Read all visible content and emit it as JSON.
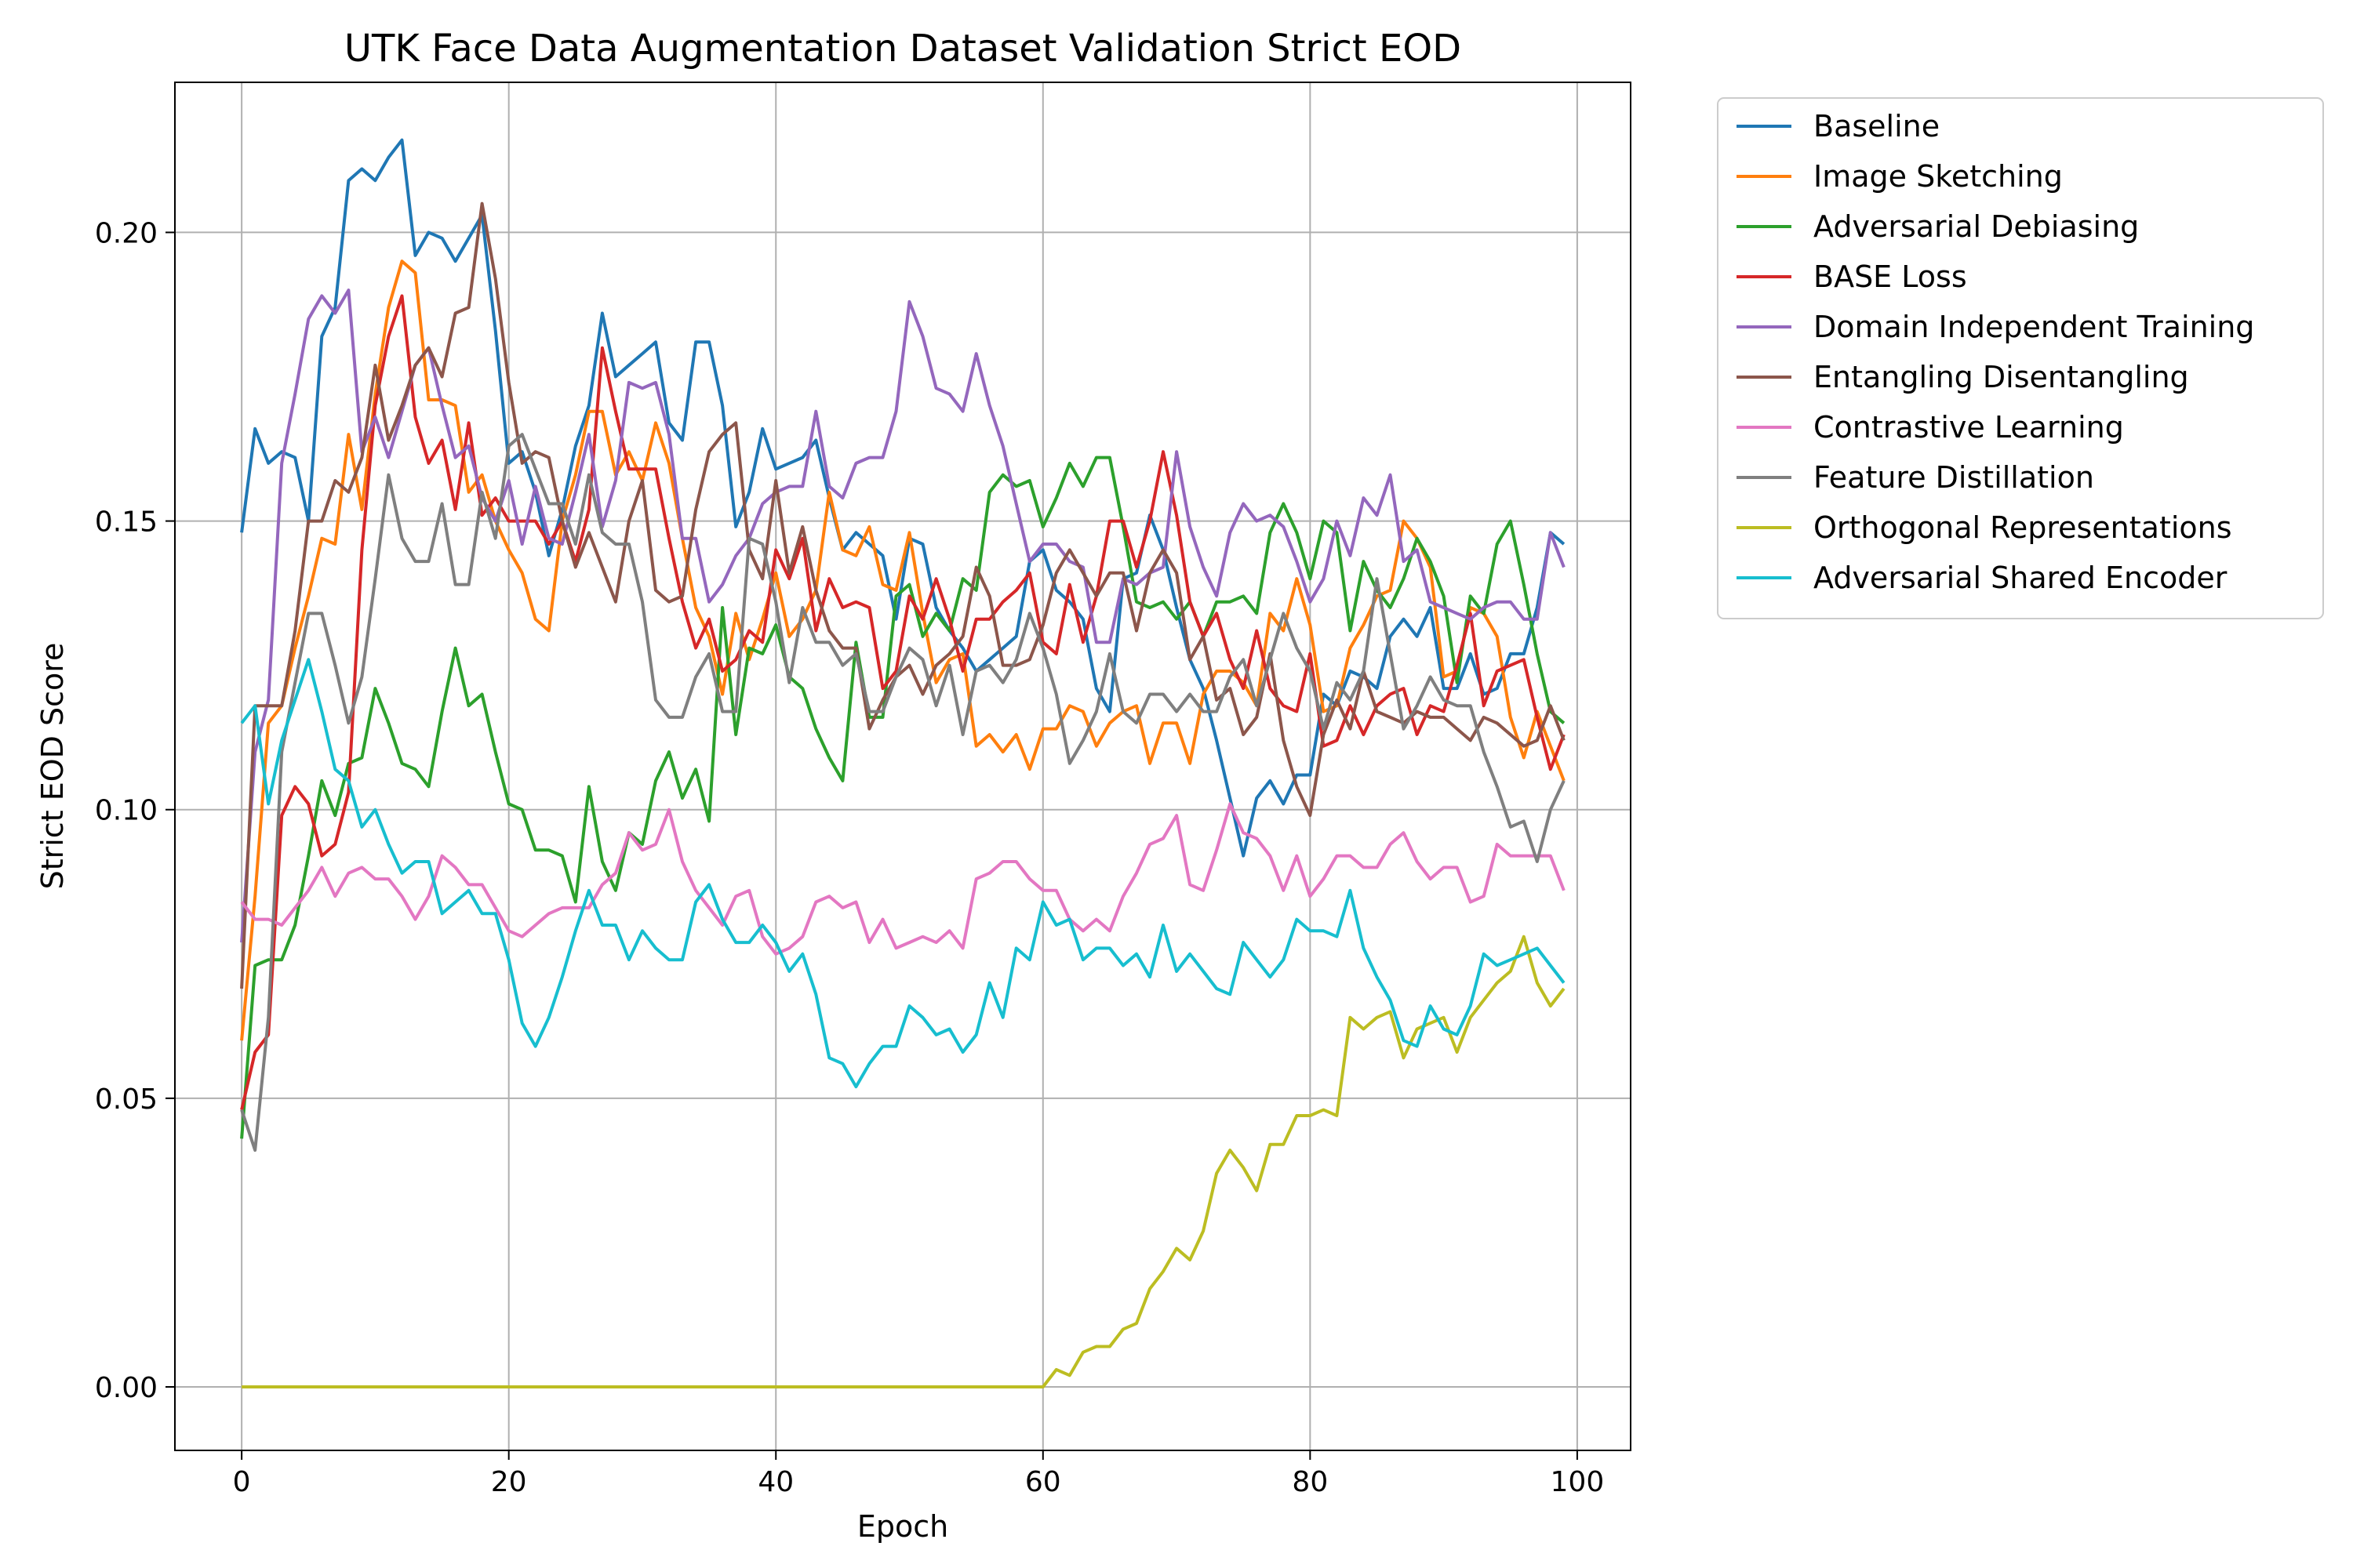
{
  "chart_data": {
    "type": "line",
    "title": "UTK Face Data Augmentation Dataset Validation Strict EOD",
    "xlabel": "Epoch",
    "ylabel": "Strict EOD Score",
    "xlim": [
      -5,
      104
    ],
    "ylim": [
      -0.011,
      0.226
    ],
    "xticks": [
      0,
      20,
      40,
      60,
      80,
      100
    ],
    "yticks": [
      0.0,
      0.05,
      0.1,
      0.15,
      0.2
    ],
    "xtick_labels": [
      "0",
      "20",
      "40",
      "60",
      "80",
      "100"
    ],
    "ytick_labels": [
      "0.00",
      "0.05",
      "0.10",
      "0.15",
      "0.20"
    ],
    "grid": true,
    "legend_position": "outside-top-right",
    "x": [
      0,
      1,
      2,
      3,
      4,
      5,
      6,
      7,
      8,
      9,
      10,
      11,
      12,
      13,
      14,
      15,
      16,
      17,
      18,
      19,
      20,
      21,
      22,
      23,
      24,
      25,
      26,
      27,
      28,
      29,
      30,
      31,
      32,
      33,
      34,
      35,
      36,
      37,
      38,
      39,
      40,
      41,
      42,
      43,
      44,
      45,
      46,
      47,
      48,
      49,
      50,
      51,
      52,
      53,
      54,
      55,
      56,
      57,
      58,
      59,
      60,
      61,
      62,
      63,
      64,
      65,
      66,
      67,
      68,
      69,
      70,
      71,
      72,
      73,
      74,
      75,
      76,
      77,
      78,
      79,
      80,
      81,
      82,
      83,
      84,
      85,
      86,
      87,
      88,
      89,
      90,
      91,
      92,
      93,
      94,
      95,
      96,
      97,
      98,
      99
    ],
    "series": [
      {
        "name": "Baseline",
        "color": "#1f77b4",
        "values": [
          0.148,
          0.166,
          0.16,
          0.162,
          0.161,
          0.15,
          0.182,
          0.187,
          0.209,
          0.211,
          0.209,
          0.213,
          0.216,
          0.196,
          0.2,
          0.199,
          0.195,
          0.199,
          0.203,
          0.183,
          0.16,
          0.162,
          0.155,
          0.144,
          0.152,
          0.163,
          0.17,
          0.186,
          0.175,
          0.177,
          0.179,
          0.181,
          0.167,
          0.164,
          0.181,
          0.181,
          0.17,
          0.149,
          0.155,
          0.166,
          0.159,
          0.16,
          0.161,
          0.164,
          0.154,
          0.145,
          0.148,
          0.146,
          0.144,
          0.133,
          0.147,
          0.146,
          0.135,
          0.131,
          0.128,
          0.124,
          0.126,
          0.128,
          0.13,
          0.143,
          0.145,
          0.138,
          0.136,
          0.133,
          0.121,
          0.117,
          0.14,
          0.141,
          0.151,
          0.145,
          0.135,
          0.126,
          0.121,
          0.112,
          0.102,
          0.092,
          0.102,
          0.105,
          0.101,
          0.106,
          0.106,
          0.12,
          0.118,
          0.124,
          0.123,
          0.121,
          0.13,
          0.133,
          0.13,
          0.135,
          0.121,
          0.121,
          0.127,
          0.12,
          0.121,
          0.127,
          0.127,
          0.135,
          0.148,
          0.146
        ]
      },
      {
        "name": "Image Sketching",
        "color": "#ff7f0e",
        "values": [
          0.06,
          0.085,
          0.115,
          0.118,
          0.128,
          0.137,
          0.147,
          0.146,
          0.165,
          0.152,
          0.172,
          0.187,
          0.195,
          0.193,
          0.171,
          0.171,
          0.17,
          0.155,
          0.158,
          0.15,
          0.145,
          0.141,
          0.133,
          0.131,
          0.15,
          0.158,
          0.169,
          0.169,
          0.158,
          0.162,
          0.157,
          0.167,
          0.16,
          0.147,
          0.135,
          0.13,
          0.12,
          0.134,
          0.126,
          0.133,
          0.141,
          0.13,
          0.133,
          0.138,
          0.155,
          0.145,
          0.144,
          0.149,
          0.139,
          0.138,
          0.148,
          0.134,
          0.122,
          0.126,
          0.127,
          0.111,
          0.113,
          0.11,
          0.113,
          0.107,
          0.114,
          0.114,
          0.118,
          0.117,
          0.111,
          0.115,
          0.117,
          0.118,
          0.108,
          0.115,
          0.115,
          0.108,
          0.12,
          0.124,
          0.124,
          0.122,
          0.118,
          0.134,
          0.131,
          0.14,
          0.132,
          0.117,
          0.118,
          0.128,
          0.132,
          0.137,
          0.138,
          0.15,
          0.147,
          0.142,
          0.123,
          0.124,
          0.135,
          0.134,
          0.13,
          0.116,
          0.109,
          0.117,
          0.111,
          0.105
        ]
      },
      {
        "name": "Adversarial Debiasing",
        "color": "#2ca02c",
        "values": [
          0.043,
          0.073,
          0.074,
          0.074,
          0.08,
          0.092,
          0.105,
          0.099,
          0.108,
          0.109,
          0.121,
          0.115,
          0.108,
          0.107,
          0.104,
          0.117,
          0.128,
          0.118,
          0.12,
          0.11,
          0.101,
          0.1,
          0.093,
          0.093,
          0.092,
          0.084,
          0.104,
          0.091,
          0.086,
          0.096,
          0.094,
          0.105,
          0.11,
          0.102,
          0.107,
          0.098,
          0.135,
          0.113,
          0.128,
          0.127,
          0.132,
          0.123,
          0.121,
          0.114,
          0.109,
          0.105,
          0.129,
          0.116,
          0.116,
          0.137,
          0.139,
          0.13,
          0.134,
          0.131,
          0.14,
          0.138,
          0.155,
          0.158,
          0.156,
          0.157,
          0.149,
          0.154,
          0.16,
          0.156,
          0.161,
          0.161,
          0.149,
          0.136,
          0.135,
          0.136,
          0.133,
          0.136,
          0.13,
          0.136,
          0.136,
          0.137,
          0.134,
          0.148,
          0.153,
          0.148,
          0.14,
          0.15,
          0.148,
          0.131,
          0.143,
          0.138,
          0.135,
          0.14,
          0.147,
          0.143,
          0.137,
          0.122,
          0.137,
          0.134,
          0.146,
          0.15,
          0.139,
          0.127,
          0.117,
          0.115
        ]
      },
      {
        "name": "BASE Loss",
        "color": "#d62728",
        "values": [
          0.048,
          0.058,
          0.061,
          0.099,
          0.104,
          0.101,
          0.092,
          0.094,
          0.103,
          0.145,
          0.17,
          0.182,
          0.189,
          0.168,
          0.16,
          0.164,
          0.152,
          0.167,
          0.151,
          0.154,
          0.15,
          0.15,
          0.15,
          0.146,
          0.15,
          0.143,
          0.152,
          0.18,
          0.169,
          0.159,
          0.159,
          0.159,
          0.147,
          0.136,
          0.128,
          0.133,
          0.124,
          0.126,
          0.131,
          0.129,
          0.145,
          0.14,
          0.147,
          0.131,
          0.14,
          0.135,
          0.136,
          0.135,
          0.121,
          0.124,
          0.137,
          0.133,
          0.14,
          0.133,
          0.124,
          0.133,
          0.133,
          0.136,
          0.138,
          0.141,
          0.129,
          0.127,
          0.139,
          0.129,
          0.137,
          0.15,
          0.15,
          0.142,
          0.15,
          0.162,
          0.151,
          0.136,
          0.13,
          0.134,
          0.126,
          0.121,
          0.131,
          0.121,
          0.118,
          0.117,
          0.127,
          0.111,
          0.112,
          0.118,
          0.113,
          0.118,
          0.12,
          0.121,
          0.113,
          0.118,
          0.117,
          0.125,
          0.134,
          0.118,
          0.124,
          0.125,
          0.126,
          0.116,
          0.107,
          0.113
        ]
      },
      {
        "name": "Domain Independent Training",
        "color": "#9467bd",
        "values": [
          0.077,
          0.11,
          0.119,
          0.16,
          0.172,
          0.185,
          0.189,
          0.186,
          0.19,
          0.162,
          0.168,
          0.161,
          0.169,
          0.177,
          0.18,
          0.17,
          0.161,
          0.163,
          0.154,
          0.15,
          0.157,
          0.146,
          0.156,
          0.147,
          0.146,
          0.155,
          0.165,
          0.149,
          0.157,
          0.174,
          0.173,
          0.174,
          0.165,
          0.147,
          0.147,
          0.136,
          0.139,
          0.144,
          0.147,
          0.153,
          0.155,
          0.156,
          0.156,
          0.169,
          0.156,
          0.154,
          0.16,
          0.161,
          0.161,
          0.169,
          0.188,
          0.182,
          0.173,
          0.172,
          0.169,
          0.179,
          0.17,
          0.163,
          0.153,
          0.143,
          0.146,
          0.146,
          0.143,
          0.142,
          0.129,
          0.129,
          0.14,
          0.139,
          0.141,
          0.142,
          0.162,
          0.149,
          0.142,
          0.137,
          0.148,
          0.153,
          0.15,
          0.151,
          0.149,
          0.143,
          0.136,
          0.14,
          0.15,
          0.144,
          0.154,
          0.151,
          0.158,
          0.143,
          0.145,
          0.136,
          0.135,
          0.134,
          0.133,
          0.135,
          0.136,
          0.136,
          0.133,
          0.133,
          0.148,
          0.142
        ]
      },
      {
        "name": "Entangling Disentangling",
        "color": "#8c564b",
        "values": [
          0.069,
          0.118,
          0.118,
          0.118,
          0.131,
          0.15,
          0.15,
          0.157,
          0.155,
          0.161,
          0.177,
          0.164,
          0.17,
          0.177,
          0.18,
          0.175,
          0.186,
          0.187,
          0.205,
          0.192,
          0.174,
          0.16,
          0.162,
          0.161,
          0.15,
          0.142,
          0.148,
          0.142,
          0.136,
          0.15,
          0.157,
          0.138,
          0.136,
          0.137,
          0.152,
          0.162,
          0.165,
          0.167,
          0.145,
          0.14,
          0.157,
          0.141,
          0.149,
          0.138,
          0.131,
          0.128,
          0.128,
          0.114,
          0.119,
          0.123,
          0.125,
          0.12,
          0.125,
          0.127,
          0.13,
          0.142,
          0.137,
          0.125,
          0.125,
          0.126,
          0.132,
          0.141,
          0.145,
          0.141,
          0.137,
          0.141,
          0.141,
          0.131,
          0.141,
          0.145,
          0.141,
          0.126,
          0.13,
          0.119,
          0.121,
          0.113,
          0.116,
          0.127,
          0.112,
          0.104,
          0.099,
          0.113,
          0.119,
          0.114,
          0.124,
          0.117,
          0.116,
          0.115,
          0.117,
          0.116,
          0.116,
          0.114,
          0.112,
          0.116,
          0.115,
          0.113,
          0.111,
          0.112,
          0.118,
          0.112
        ]
      },
      {
        "name": "Contrastive Learning",
        "color": "#e377c2",
        "values": [
          0.084,
          0.081,
          0.081,
          0.08,
          0.083,
          0.086,
          0.09,
          0.085,
          0.089,
          0.09,
          0.088,
          0.088,
          0.085,
          0.081,
          0.085,
          0.092,
          0.09,
          0.087,
          0.087,
          0.083,
          0.079,
          0.078,
          0.08,
          0.082,
          0.083,
          0.083,
          0.083,
          0.087,
          0.089,
          0.096,
          0.093,
          0.094,
          0.1,
          0.091,
          0.086,
          0.083,
          0.08,
          0.085,
          0.086,
          0.078,
          0.075,
          0.076,
          0.078,
          0.084,
          0.085,
          0.083,
          0.084,
          0.077,
          0.081,
          0.076,
          0.077,
          0.078,
          0.077,
          0.079,
          0.076,
          0.088,
          0.089,
          0.091,
          0.091,
          0.088,
          0.086,
          0.086,
          0.081,
          0.079,
          0.081,
          0.079,
          0.085,
          0.089,
          0.094,
          0.095,
          0.099,
          0.087,
          0.086,
          0.093,
          0.101,
          0.096,
          0.095,
          0.092,
          0.086,
          0.092,
          0.085,
          0.088,
          0.092,
          0.092,
          0.09,
          0.09,
          0.094,
          0.096,
          0.091,
          0.088,
          0.09,
          0.09,
          0.084,
          0.085,
          0.094,
          0.092,
          0.092,
          0.092,
          0.092,
          0.086
        ]
      },
      {
        "name": "Feature Distillation",
        "color": "#7f7f7f",
        "values": [
          0.048,
          0.041,
          0.064,
          0.11,
          0.122,
          0.134,
          0.134,
          0.125,
          0.115,
          0.123,
          0.14,
          0.158,
          0.147,
          0.143,
          0.143,
          0.153,
          0.139,
          0.139,
          0.155,
          0.147,
          0.163,
          0.165,
          0.159,
          0.153,
          0.153,
          0.146,
          0.158,
          0.148,
          0.146,
          0.146,
          0.136,
          0.119,
          0.116,
          0.116,
          0.123,
          0.127,
          0.117,
          0.117,
          0.147,
          0.146,
          0.136,
          0.122,
          0.135,
          0.129,
          0.129,
          0.125,
          0.127,
          0.117,
          0.117,
          0.123,
          0.128,
          0.126,
          0.118,
          0.125,
          0.113,
          0.124,
          0.125,
          0.122,
          0.126,
          0.134,
          0.128,
          0.12,
          0.108,
          0.112,
          0.117,
          0.127,
          0.117,
          0.115,
          0.12,
          0.12,
          0.117,
          0.12,
          0.117,
          0.117,
          0.123,
          0.126,
          0.118,
          0.126,
          0.134,
          0.128,
          0.124,
          0.114,
          0.122,
          0.119,
          0.124,
          0.14,
          0.127,
          0.114,
          0.118,
          0.123,
          0.119,
          0.118,
          0.118,
          0.11,
          0.104,
          0.097,
          0.098,
          0.091,
          0.1,
          0.105
        ]
      },
      {
        "name": "Orthogonal Representations",
        "color": "#bcbd22",
        "values": [
          0,
          0,
          0,
          0,
          0,
          0,
          0,
          0,
          0,
          0,
          0,
          0,
          0,
          0,
          0,
          0,
          0,
          0,
          0,
          0,
          0,
          0,
          0,
          0,
          0,
          0,
          0,
          0,
          0,
          0,
          0,
          0,
          0,
          0,
          0,
          0,
          0,
          0,
          0,
          0,
          0,
          0,
          0,
          0,
          0,
          0,
          0,
          0,
          0,
          0,
          0,
          0,
          0,
          0,
          0,
          0,
          0,
          0,
          0,
          0,
          0,
          0.003,
          0.002,
          0.006,
          0.007,
          0.007,
          0.01,
          0.011,
          0.017,
          0.02,
          0.024,
          0.022,
          0.027,
          0.037,
          0.041,
          0.038,
          0.034,
          0.042,
          0.042,
          0.047,
          0.047,
          0.048,
          0.047,
          0.064,
          0.062,
          0.064,
          0.065,
          0.057,
          0.062,
          0.063,
          0.064,
          0.058,
          0.064,
          0.067,
          0.07,
          0.072,
          0.078,
          0.07,
          0.066,
          0.069
        ]
      },
      {
        "name": "Adversarial Shared Encoder",
        "color": "#17becf",
        "values": [
          0.115,
          0.118,
          0.101,
          0.112,
          0.119,
          0.126,
          0.117,
          0.107,
          0.105,
          0.097,
          0.1,
          0.094,
          0.089,
          0.091,
          0.091,
          0.082,
          0.084,
          0.086,
          0.082,
          0.082,
          0.074,
          0.063,
          0.059,
          0.064,
          0.071,
          0.079,
          0.086,
          0.08,
          0.08,
          0.074,
          0.079,
          0.076,
          0.074,
          0.074,
          0.084,
          0.087,
          0.081,
          0.077,
          0.077,
          0.08,
          0.077,
          0.072,
          0.075,
          0.068,
          0.057,
          0.056,
          0.052,
          0.056,
          0.059,
          0.059,
          0.066,
          0.064,
          0.061,
          0.062,
          0.058,
          0.061,
          0.07,
          0.064,
          0.076,
          0.074,
          0.084,
          0.08,
          0.081,
          0.074,
          0.076,
          0.076,
          0.073,
          0.075,
          0.071,
          0.08,
          0.072,
          0.075,
          0.072,
          0.069,
          0.068,
          0.077,
          0.074,
          0.071,
          0.074,
          0.081,
          0.079,
          0.079,
          0.078,
          0.086,
          0.076,
          0.071,
          0.067,
          0.06,
          0.059,
          0.066,
          0.062,
          0.061,
          0.066,
          0.075,
          0.073,
          0.074,
          0.075,
          0.076,
          0.073,
          0.07
        ]
      }
    ]
  }
}
